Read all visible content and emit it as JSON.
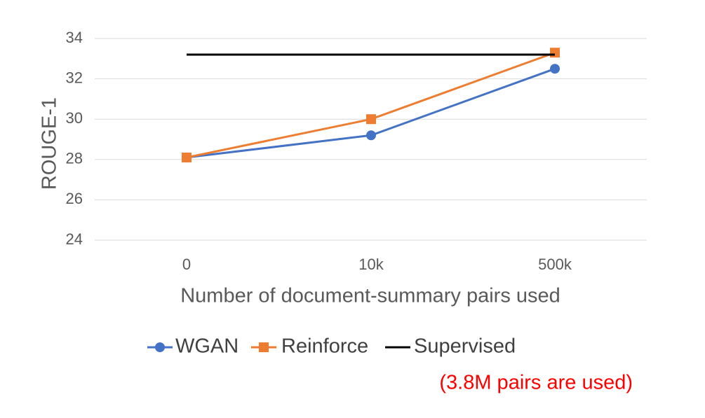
{
  "chart_data": {
    "type": "line",
    "title": "",
    "xlabel": "Number of document-summary pairs used",
    "ylabel": "ROUGE-1",
    "categories": [
      "0",
      "10k",
      "500k"
    ],
    "ylim": [
      24,
      34
    ],
    "yticks": [
      24,
      26,
      28,
      30,
      32,
      34
    ],
    "grid": true,
    "legend_position": "bottom",
    "series": [
      {
        "name": "WGAN",
        "values": [
          28.1,
          29.2,
          32.5
        ],
        "color": "#4472c4",
        "marker": "circle"
      },
      {
        "name": "Reinforce",
        "values": [
          28.1,
          30.0,
          33.3
        ],
        "color": "#ed7d31",
        "marker": "square"
      },
      {
        "name": "Supervised",
        "values": [
          33.2,
          33.2,
          33.2
        ],
        "color": "#000000",
        "marker": "none"
      }
    ],
    "annotation": "(3.8M pairs are used)"
  }
}
